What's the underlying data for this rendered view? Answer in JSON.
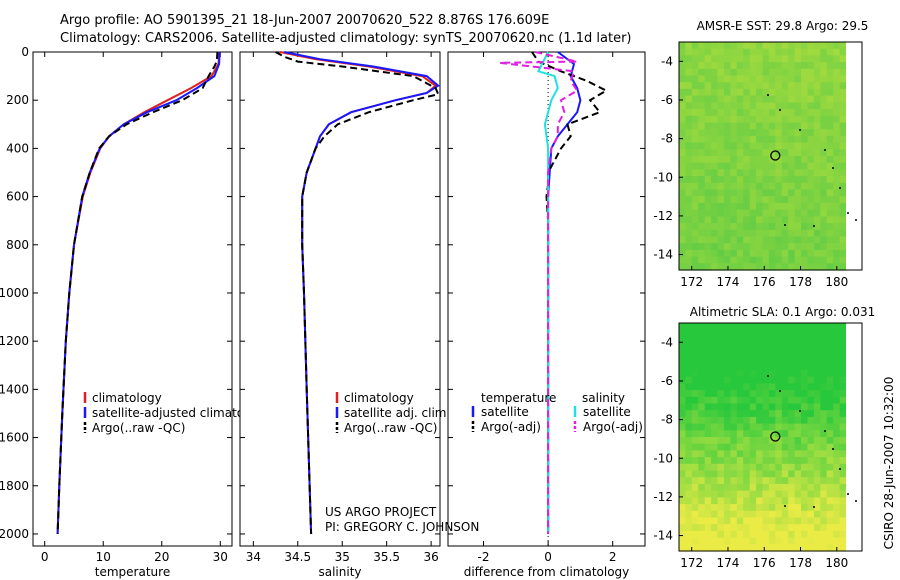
{
  "header": {
    "line1": "Argo profile: AO 5901395_21 18-Jun-2007 20070620_522 8.876S 176.609E",
    "line2": "Climatology: CARS2006. Satellite-adjusted climatology: synTS_20070620.nc (1.1d later)"
  },
  "credit": {
    "project": "US ARGO PROJECT",
    "pi": "PI: GREGORY C. JOHNSON",
    "side": "CSIRO 28-Jun-2007 10:32:00"
  },
  "colors": {
    "climatology": "#e02020",
    "satellite": "#1818ff",
    "argo": "#000000",
    "salinity_satellite": "#20e0e0",
    "salinity_argo": "#e020e0"
  },
  "chart_data": [
    {
      "type": "line",
      "name": "temperature-profile",
      "xlabel": "temperature",
      "ylabel": "",
      "xlim": [
        -2,
        32
      ],
      "ylim": [
        2050,
        0
      ],
      "xticks": [
        "0",
        "10",
        "20",
        "30"
      ],
      "xtick_values": [
        0,
        10,
        20,
        30
      ],
      "yticks": [
        "0",
        "200",
        "400",
        "600",
        "800",
        "1000",
        "1200",
        "1400",
        "1600",
        "1800",
        "2000"
      ],
      "ytick_values": [
        0,
        200,
        400,
        600,
        800,
        1000,
        1200,
        1400,
        1600,
        1800,
        2000
      ],
      "legend": [
        "climatology",
        "satellite-adjusted climatology",
        "Argo(..raw -QC)"
      ],
      "series": [
        {
          "name": "climatology",
          "style": "solid",
          "depth": [
            0,
            50,
            100,
            150,
            200,
            250,
            300,
            350,
            400,
            500,
            600,
            800,
            1000,
            1200,
            1500,
            1800,
            2000
          ],
          "values": [
            29.8,
            29.7,
            28.5,
            25.0,
            21.0,
            17.0,
            13.5,
            11.0,
            9.5,
            7.8,
            6.5,
            5.0,
            4.2,
            3.6,
            3.0,
            2.5,
            2.2
          ]
        },
        {
          "name": "satellite-adjusted climatology",
          "style": "solid",
          "depth": [
            0,
            50,
            100,
            150,
            200,
            250,
            300,
            350,
            400,
            500,
            600,
            800,
            1000,
            1200,
            1500,
            1800,
            2000
          ],
          "values": [
            29.9,
            29.8,
            29.0,
            26.0,
            22.5,
            17.5,
            13.5,
            11.0,
            9.4,
            7.7,
            6.4,
            5.0,
            4.2,
            3.6,
            3.0,
            2.5,
            2.2
          ]
        },
        {
          "name": "Argo(..raw -QC)",
          "style": "dashed",
          "depth": [
            0,
            40,
            60,
            100,
            150,
            200,
            250,
            300,
            350,
            400,
            500,
            600,
            800,
            1000,
            1200,
            1500,
            1800,
            2000
          ],
          "values": [
            29.5,
            29.4,
            29.0,
            28.0,
            27.0,
            23.5,
            18.5,
            14.0,
            11.0,
            9.3,
            7.7,
            6.4,
            5.0,
            4.2,
            3.6,
            3.0,
            2.5,
            2.2
          ]
        }
      ]
    },
    {
      "type": "line",
      "name": "salinity-profile",
      "xlabel": "salinity",
      "xlim": [
        33.85,
        36.1
      ],
      "ylim": [
        2050,
        0
      ],
      "xticks": [
        "34",
        "34.5",
        "35",
        "35.5",
        "36"
      ],
      "xtick_values": [
        34,
        34.5,
        35,
        35.5,
        36
      ],
      "legend": [
        "climatology",
        "satellite adj. clim.",
        "Argo(..raw -QC)"
      ],
      "series": [
        {
          "name": "climatology",
          "style": "solid",
          "depth": [
            0,
            30,
            60,
            100,
            140,
            170,
            200,
            250,
            300,
            350,
            400,
            500,
            600,
            800,
            1000,
            1400,
            2000
          ],
          "values": [
            34.3,
            34.7,
            35.3,
            35.9,
            36.05,
            35.95,
            35.6,
            35.1,
            34.85,
            34.75,
            34.7,
            34.6,
            34.55,
            34.55,
            34.57,
            34.6,
            34.65
          ]
        },
        {
          "name": "satellite adj. clim.",
          "style": "solid",
          "depth": [
            0,
            30,
            60,
            100,
            140,
            170,
            200,
            250,
            300,
            350,
            400,
            500,
            600,
            800,
            1000,
            1400,
            2000
          ],
          "values": [
            34.35,
            34.75,
            35.35,
            35.95,
            36.08,
            35.95,
            35.6,
            35.1,
            34.85,
            34.75,
            34.7,
            34.6,
            34.55,
            34.55,
            34.57,
            34.6,
            34.65
          ]
        },
        {
          "name": "Argo(..raw -QC)",
          "style": "dashed",
          "depth": [
            0,
            20,
            40,
            60,
            100,
            150,
            175,
            200,
            250,
            300,
            350,
            400,
            500,
            600,
            800,
            1000,
            1400,
            2000
          ],
          "values": [
            34.25,
            34.35,
            34.5,
            35.0,
            35.8,
            36.05,
            36.08,
            35.8,
            35.3,
            34.95,
            34.8,
            34.7,
            34.6,
            34.55,
            34.55,
            34.57,
            34.6,
            34.65
          ]
        }
      ]
    },
    {
      "type": "line",
      "name": "difference-profile",
      "xlabel": "difference from climatology",
      "xlim": [
        -3.1,
        3.0
      ],
      "ylim": [
        2050,
        0
      ],
      "xticks": [
        "-2",
        "0",
        "2"
      ],
      "xtick_values": [
        -2,
        0,
        2
      ],
      "legend_headers": [
        "temperature",
        "salinity"
      ],
      "legend": [
        "satellite",
        "Argo(-adj)",
        "satellite",
        "Argo(-adj)"
      ],
      "series": [
        {
          "name": "temperature satellite",
          "style": "solid",
          "color": "satellite",
          "depth": [
            0,
            50,
            100,
            150,
            200,
            250,
            300,
            350,
            400,
            500,
            600,
            800,
            1000,
            2000
          ],
          "values": [
            0.3,
            0.8,
            0.7,
            0.9,
            1.0,
            0.9,
            0.6,
            0.3,
            0.1,
            0.05,
            0.0,
            0.0,
            0.0,
            0.0
          ]
        },
        {
          "name": "temperature Argo(-adj)",
          "style": "dashed",
          "color": "argo",
          "depth": [
            0,
            40,
            80,
            120,
            160,
            200,
            250,
            280,
            300,
            350,
            400,
            450,
            500,
            550,
            600,
            700,
            800,
            1000,
            1400,
            2000
          ],
          "values": [
            -0.5,
            -0.3,
            0.4,
            1.2,
            1.8,
            1.3,
            1.6,
            1.0,
            0.6,
            0.7,
            0.4,
            0.2,
            0.0,
            0.0,
            -0.05,
            0.0,
            0.0,
            0.0,
            0.0,
            0.0
          ]
        },
        {
          "name": "salinity satellite",
          "style": "solid",
          "color": "salinity_satellite",
          "depth": [
            0,
            80,
            100,
            150,
            200,
            300,
            400,
            600,
            800,
            1000,
            1500,
            2000
          ],
          "values": [
            0.0,
            -0.3,
            0.2,
            0.3,
            0.1,
            -0.1,
            0.0,
            0.0,
            0.0,
            0.0,
            0.0,
            0.0
          ]
        },
        {
          "name": "salinity Argo(-adj)",
          "style": "dashed",
          "color": "salinity_argo",
          "depth": [
            0,
            40,
            45,
            80,
            120,
            160,
            200,
            250,
            300,
            350,
            400,
            500,
            600,
            800,
            1200,
            1600,
            2000
          ],
          "values": [
            -0.4,
            0.9,
            -1.5,
            0.8,
            0.7,
            0.9,
            0.4,
            0.5,
            0.3,
            0.3,
            0.1,
            0.0,
            0.0,
            0.0,
            0.0,
            0.0,
            0.0
          ]
        }
      ]
    },
    {
      "type": "heatmap",
      "name": "sst-map",
      "title": "AMSR-E SST: 29.8 Argo: 29.5",
      "xlim": [
        171.3,
        181.5
      ],
      "ylim": [
        -14.8,
        -3.0
      ],
      "xticks": [
        "172",
        "174",
        "176",
        "178",
        "180"
      ],
      "xtick_values": [
        172,
        174,
        176,
        178,
        180
      ],
      "yticks": [
        "-4",
        "-6",
        "-8",
        "-10",
        "-12",
        "-14"
      ],
      "ytick_values": [
        -4,
        -6,
        -8,
        -10,
        -12,
        -14
      ],
      "marker": {
        "lon": 176.609,
        "lat": -8.876
      }
    },
    {
      "type": "heatmap",
      "name": "sla-map",
      "title": "Altimetric SLA: 0.1 Argo: 0.031",
      "xlim": [
        171.3,
        181.5
      ],
      "ylim": [
        -14.8,
        -3.0
      ],
      "xticks": [
        "172",
        "174",
        "176",
        "178",
        "180"
      ],
      "xtick_values": [
        172,
        174,
        176,
        178,
        180
      ],
      "yticks": [
        "-4",
        "-6",
        "-8",
        "-10",
        "-12",
        "-14"
      ],
      "ytick_values": [
        -4,
        -6,
        -8,
        -10,
        -12,
        -14
      ],
      "marker": {
        "lon": 176.609,
        "lat": -8.876
      }
    }
  ]
}
